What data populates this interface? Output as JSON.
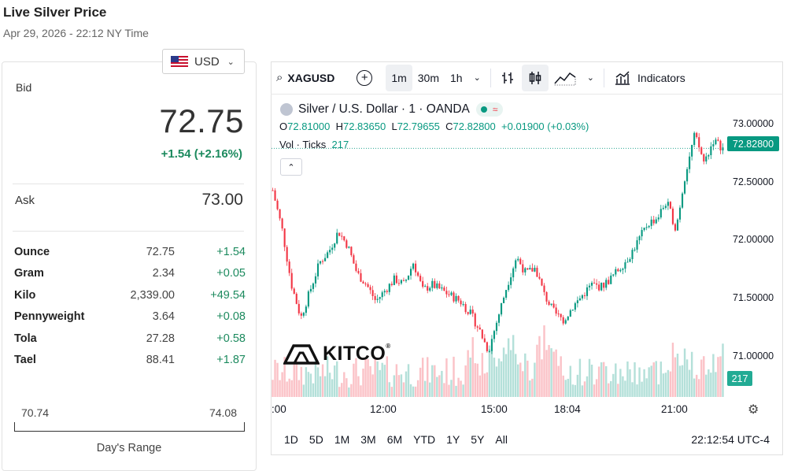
{
  "header": {
    "title": "Live Silver Price",
    "timestamp": "Apr 29, 2026 - 22:12 NY Time"
  },
  "currency": {
    "selected": "USD",
    "flag_icon": "us-flag-icon"
  },
  "quote": {
    "bid_label": "Bid",
    "bid": "72.75",
    "change": "+1.54 (+2.16%)",
    "ask_label": "Ask",
    "ask": "73.00"
  },
  "units": [
    {
      "name": "Ounce",
      "value": "72.75",
      "change": "+1.54"
    },
    {
      "name": "Gram",
      "value": "2.34",
      "change": "+0.05"
    },
    {
      "name": "Kilo",
      "value": "2,339.00",
      "change": "+49.54"
    },
    {
      "name": "Pennyweight",
      "value": "3.64",
      "change": "+0.08"
    },
    {
      "name": "Tola",
      "value": "27.28",
      "change": "+0.58"
    },
    {
      "name": "Tael",
      "value": "88.41",
      "change": "+1.87"
    }
  ],
  "day_range": {
    "low": "70.74",
    "high": "74.08",
    "label": "Day's Range"
  },
  "toolbar": {
    "symbol": "XAGUSD",
    "intervals": [
      "1m",
      "30m",
      "1h"
    ],
    "selected_interval": "1m",
    "indicators_label": "Indicators"
  },
  "legend": {
    "title": "Silver / U.S. Dollar · 1 · OANDA",
    "o_label": "O",
    "o": "72.81000",
    "h_label": "H",
    "h": "72.83650",
    "l_label": "L",
    "l": "72.79655",
    "c_label": "C",
    "c": "72.82800",
    "change": "+0.01900 (+0.03%)",
    "vol_label": "Vol · Ticks",
    "vol": "217"
  },
  "chart_data": {
    "type": "candlestick",
    "title": "Silver / U.S. Dollar · 1 · OANDA",
    "x_ticks": [
      ":00",
      "12:00",
      "15:00",
      "18:04",
      "21:00"
    ],
    "y_ticks": [
      "73.00000",
      "72.50000",
      "72.00000",
      "71.50000",
      "71.00000"
    ],
    "ylim": [
      70.95,
      73.05
    ],
    "last_price": "72.82800",
    "last_volume": "217",
    "close_path": [
      [
        0,
        72.45
      ],
      [
        2,
        72.1
      ],
      [
        4,
        71.6
      ],
      [
        6,
        71.3
      ],
      [
        8,
        71.55
      ],
      [
        10,
        71.8
      ],
      [
        12,
        71.9
      ],
      [
        14,
        72.08
      ],
      [
        16,
        71.95
      ],
      [
        18,
        71.7
      ],
      [
        20,
        71.6
      ],
      [
        22,
        71.45
      ],
      [
        24,
        71.55
      ],
      [
        26,
        71.65
      ],
      [
        28,
        71.6
      ],
      [
        30,
        71.8
      ],
      [
        32,
        71.55
      ],
      [
        34,
        71.6
      ],
      [
        36,
        71.55
      ],
      [
        38,
        71.5
      ],
      [
        40,
        71.45
      ],
      [
        42,
        71.35
      ],
      [
        44,
        71.2
      ],
      [
        46,
        71.0
      ],
      [
        48,
        71.3
      ],
      [
        50,
        71.6
      ],
      [
        52,
        71.85
      ],
      [
        54,
        71.7
      ],
      [
        56,
        71.75
      ],
      [
        58,
        71.5
      ],
      [
        60,
        71.35
      ],
      [
        62,
        71.28
      ],
      [
        64,
        71.4
      ],
      [
        66,
        71.5
      ],
      [
        68,
        71.6
      ],
      [
        70,
        71.58
      ],
      [
        72,
        71.65
      ],
      [
        74,
        71.75
      ],
      [
        76,
        71.85
      ],
      [
        78,
        72.0
      ],
      [
        80,
        72.15
      ],
      [
        82,
        72.2
      ],
      [
        84,
        72.35
      ],
      [
        86,
        72.1
      ],
      [
        88,
        72.6
      ],
      [
        90,
        72.95
      ],
      [
        92,
        72.7
      ],
      [
        94,
        72.9
      ],
      [
        96,
        72.83
      ]
    ],
    "time_ranges": [
      "1D",
      "5D",
      "1M",
      "3M",
      "6M",
      "YTD",
      "1Y",
      "5Y",
      "All"
    ],
    "clock": "22:12:54 UTC-4"
  },
  "logo": {
    "text": "KITCO",
    "reg": "®"
  },
  "colors": {
    "up": "#089981",
    "down": "#f23645",
    "accent": "#1c8a5e"
  }
}
